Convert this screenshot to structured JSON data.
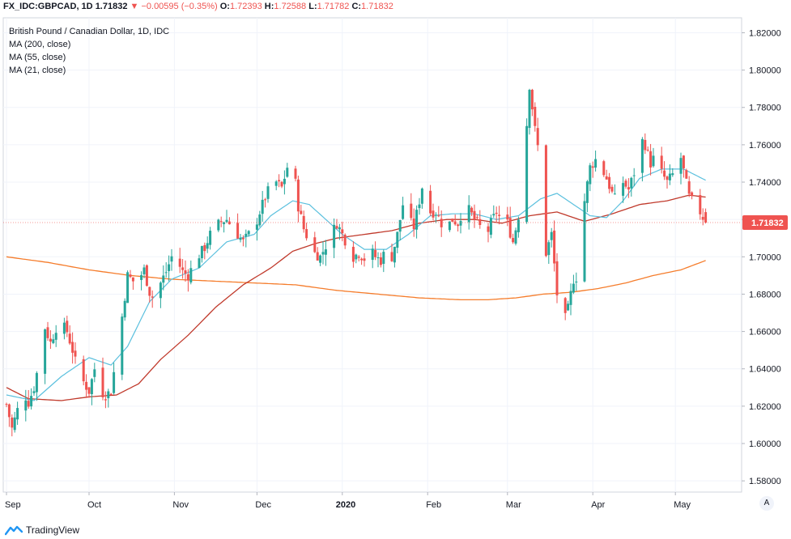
{
  "header": {
    "symbol": "FX_IDC:GBPCAD, 1D",
    "last": "1.71832",
    "change": "−0.00595 (−0.35%)",
    "o_label": "O:",
    "o": "1.72393",
    "h_label": "H:",
    "h": "1.72588",
    "l_label": "L:",
    "l": "1.71782",
    "c_label": "C:",
    "c": "1.71832"
  },
  "legend": {
    "title": "British Pound / Canadian Dollar, 1D, IDC",
    "ma200": "MA (200, close)",
    "ma55": "MA (55, close)",
    "ma21": "MA (21, close)"
  },
  "brand": "TradingView",
  "axis_auto_label": "A",
  "colors": {
    "up": "#26a69a",
    "down": "#ef5350",
    "ma200": "#f57c2b",
    "ma55": "#c0392b",
    "ma21": "#5bc0de",
    "price_tag": "#ef5350"
  },
  "chart_data": {
    "type": "candlestick",
    "title": "British Pound / Canadian Dollar, 1D, IDC",
    "ylim": [
      1.574,
      1.828
    ],
    "y_ticks": [
      "1.82000",
      "1.80000",
      "1.78000",
      "1.76000",
      "1.74000",
      "1.72000",
      "1.70000",
      "1.68000",
      "1.66000",
      "1.64000",
      "1.62000",
      "1.60000",
      "1.58000"
    ],
    "x_labels": [
      "Sep",
      "Oct",
      "Nov",
      "Dec",
      "2020",
      "Feb",
      "Mar",
      "Apr",
      "May"
    ],
    "x_label_days": [
      0,
      30,
      61,
      91,
      122,
      153,
      182,
      213,
      243
    ],
    "last_price_label": "1.71832",
    "last_price": 1.71832,
    "anchors": [
      {
        "d": 0,
        "c": 1.621
      },
      {
        "d": 2,
        "c": 1.608
      },
      {
        "d": 4,
        "c": 1.618
      },
      {
        "d": 6,
        "c": 1.628
      },
      {
        "d": 8,
        "c": 1.622
      },
      {
        "d": 10,
        "c": 1.63
      },
      {
        "d": 12,
        "c": 1.645
      },
      {
        "d": 14,
        "c": 1.662
      },
      {
        "d": 16,
        "c": 1.654
      },
      {
        "d": 18,
        "c": 1.662
      },
      {
        "d": 20,
        "c": 1.664
      },
      {
        "d": 22,
        "c": 1.66
      },
      {
        "d": 24,
        "c": 1.65
      },
      {
        "d": 26,
        "c": 1.638
      },
      {
        "d": 28,
        "c": 1.633
      },
      {
        "d": 30,
        "c": 1.628
      },
      {
        "d": 32,
        "c": 1.64
      },
      {
        "d": 34,
        "c": 1.628
      },
      {
        "d": 36,
        "c": 1.626
      },
      {
        "d": 38,
        "c": 1.628
      },
      {
        "d": 40,
        "c": 1.648
      },
      {
        "d": 42,
        "c": 1.668
      },
      {
        "d": 44,
        "c": 1.69
      },
      {
        "d": 46,
        "c": 1.687
      },
      {
        "d": 48,
        "c": 1.688
      },
      {
        "d": 50,
        "c": 1.693
      },
      {
        "d": 52,
        "c": 1.681
      },
      {
        "d": 54,
        "c": 1.676
      },
      {
        "d": 56,
        "c": 1.686
      },
      {
        "d": 58,
        "c": 1.692
      },
      {
        "d": 60,
        "c": 1.7
      },
      {
        "d": 62,
        "c": 1.698
      },
      {
        "d": 64,
        "c": 1.692
      },
      {
        "d": 66,
        "c": 1.69
      },
      {
        "d": 68,
        "c": 1.696
      },
      {
        "d": 70,
        "c": 1.701
      },
      {
        "d": 72,
        "c": 1.705
      },
      {
        "d": 74,
        "c": 1.712
      },
      {
        "d": 76,
        "c": 1.716
      },
      {
        "d": 78,
        "c": 1.719
      },
      {
        "d": 80,
        "c": 1.72
      },
      {
        "d": 82,
        "c": 1.716
      },
      {
        "d": 84,
        "c": 1.712
      },
      {
        "d": 86,
        "c": 1.708
      },
      {
        "d": 88,
        "c": 1.712
      },
      {
        "d": 90,
        "c": 1.715
      },
      {
        "d": 92,
        "c": 1.724
      },
      {
        "d": 94,
        "c": 1.732
      },
      {
        "d": 96,
        "c": 1.738
      },
      {
        "d": 98,
        "c": 1.74
      },
      {
        "d": 100,
        "c": 1.737
      },
      {
        "d": 102,
        "c": 1.748
      },
      {
        "d": 104,
        "c": 1.752
      },
      {
        "d": 106,
        "c": 1.727
      },
      {
        "d": 108,
        "c": 1.715
      },
      {
        "d": 110,
        "c": 1.708
      },
      {
        "d": 112,
        "c": 1.702
      },
      {
        "d": 114,
        "c": 1.7
      },
      {
        "d": 116,
        "c": 1.706
      },
      {
        "d": 118,
        "c": 1.712
      },
      {
        "d": 120,
        "c": 1.718
      },
      {
        "d": 122,
        "c": 1.712
      },
      {
        "d": 124,
        "c": 1.706
      },
      {
        "d": 126,
        "c": 1.7
      },
      {
        "d": 128,
        "c": 1.702
      },
      {
        "d": 130,
        "c": 1.699
      },
      {
        "d": 132,
        "c": 1.704
      },
      {
        "d": 134,
        "c": 1.7
      },
      {
        "d": 136,
        "c": 1.698
      },
      {
        "d": 138,
        "c": 1.704
      },
      {
        "d": 140,
        "c": 1.7
      },
      {
        "d": 142,
        "c": 1.712
      },
      {
        "d": 144,
        "c": 1.728
      },
      {
        "d": 146,
        "c": 1.72
      },
      {
        "d": 148,
        "c": 1.716
      },
      {
        "d": 150,
        "c": 1.73
      },
      {
        "d": 152,
        "c": 1.745
      },
      {
        "d": 154,
        "c": 1.724
      },
      {
        "d": 156,
        "c": 1.724
      },
      {
        "d": 158,
        "c": 1.718
      },
      {
        "d": 160,
        "c": 1.716
      },
      {
        "d": 162,
        "c": 1.72
      },
      {
        "d": 164,
        "c": 1.718
      },
      {
        "d": 166,
        "c": 1.726
      },
      {
        "d": 168,
        "c": 1.725
      },
      {
        "d": 170,
        "c": 1.72
      },
      {
        "d": 172,
        "c": 1.716
      },
      {
        "d": 174,
        "c": 1.71
      },
      {
        "d": 176,
        "c": 1.718
      },
      {
        "d": 178,
        "c": 1.724
      },
      {
        "d": 180,
        "c": 1.719
      },
      {
        "d": 182,
        "c": 1.718
      },
      {
        "d": 184,
        "c": 1.708
      },
      {
        "d": 186,
        "c": 1.722
      },
      {
        "d": 188,
        "c": 1.75
      },
      {
        "d": 190,
        "c": 1.792
      },
      {
        "d": 192,
        "c": 1.768
      },
      {
        "d": 194,
        "c": 1.75
      },
      {
        "d": 196,
        "c": 1.702
      },
      {
        "d": 198,
        "c": 1.712
      },
      {
        "d": 200,
        "c": 1.68
      },
      {
        "d": 202,
        "c": 1.662
      },
      {
        "d": 204,
        "c": 1.672
      },
      {
        "d": 206,
        "c": 1.688
      },
      {
        "d": 208,
        "c": 1.69
      },
      {
        "d": 210,
        "c": 1.73
      },
      {
        "d": 212,
        "c": 1.748
      },
      {
        "d": 214,
        "c": 1.752
      },
      {
        "d": 216,
        "c": 1.748
      },
      {
        "d": 218,
        "c": 1.742
      },
      {
        "d": 220,
        "c": 1.734
      },
      {
        "d": 222,
        "c": 1.728
      },
      {
        "d": 224,
        "c": 1.74
      },
      {
        "d": 226,
        "c": 1.736
      },
      {
        "d": 228,
        "c": 1.745
      },
      {
        "d": 230,
        "c": 1.764
      },
      {
        "d": 232,
        "c": 1.76
      },
      {
        "d": 234,
        "c": 1.75
      },
      {
        "d": 236,
        "c": 1.755
      },
      {
        "d": 238,
        "c": 1.745
      },
      {
        "d": 240,
        "c": 1.74
      },
      {
        "d": 242,
        "c": 1.744
      },
      {
        "d": 244,
        "c": 1.76
      },
      {
        "d": 246,
        "c": 1.746
      },
      {
        "d": 248,
        "c": 1.732
      },
      {
        "d": 250,
        "c": 1.728
      },
      {
        "d": 252,
        "c": 1.724
      },
      {
        "d": 254,
        "c": 1.7183
      }
    ],
    "ma21_anchors": [
      {
        "d": 0,
        "c": 1.626
      },
      {
        "d": 10,
        "c": 1.623
      },
      {
        "d": 20,
        "c": 1.636
      },
      {
        "d": 30,
        "c": 1.646
      },
      {
        "d": 38,
        "c": 1.642
      },
      {
        "d": 44,
        "c": 1.652
      },
      {
        "d": 52,
        "c": 1.676
      },
      {
        "d": 60,
        "c": 1.688
      },
      {
        "d": 70,
        "c": 1.694
      },
      {
        "d": 80,
        "c": 1.708
      },
      {
        "d": 90,
        "c": 1.712
      },
      {
        "d": 96,
        "c": 1.722
      },
      {
        "d": 104,
        "c": 1.73
      },
      {
        "d": 110,
        "c": 1.728
      },
      {
        "d": 116,
        "c": 1.72
      },
      {
        "d": 122,
        "c": 1.712
      },
      {
        "d": 130,
        "c": 1.704
      },
      {
        "d": 138,
        "c": 1.704
      },
      {
        "d": 146,
        "c": 1.712
      },
      {
        "d": 154,
        "c": 1.722
      },
      {
        "d": 162,
        "c": 1.723
      },
      {
        "d": 170,
        "c": 1.723
      },
      {
        "d": 178,
        "c": 1.72
      },
      {
        "d": 186,
        "c": 1.722
      },
      {
        "d": 194,
        "c": 1.731
      },
      {
        "d": 200,
        "c": 1.734
      },
      {
        "d": 206,
        "c": 1.728
      },
      {
        "d": 212,
        "c": 1.722
      },
      {
        "d": 218,
        "c": 1.721
      },
      {
        "d": 224,
        "c": 1.73
      },
      {
        "d": 230,
        "c": 1.742
      },
      {
        "d": 238,
        "c": 1.747
      },
      {
        "d": 246,
        "c": 1.747
      },
      {
        "d": 254,
        "c": 1.741
      }
    ],
    "ma55_anchors": [
      {
        "d": 0,
        "c": 1.63
      },
      {
        "d": 8,
        "c": 1.624
      },
      {
        "d": 20,
        "c": 1.623
      },
      {
        "d": 30,
        "c": 1.625
      },
      {
        "d": 40,
        "c": 1.626
      },
      {
        "d": 48,
        "c": 1.632
      },
      {
        "d": 56,
        "c": 1.645
      },
      {
        "d": 66,
        "c": 1.658
      },
      {
        "d": 76,
        "c": 1.673
      },
      {
        "d": 86,
        "c": 1.685
      },
      {
        "d": 96,
        "c": 1.694
      },
      {
        "d": 104,
        "c": 1.703
      },
      {
        "d": 112,
        "c": 1.707
      },
      {
        "d": 120,
        "c": 1.71
      },
      {
        "d": 130,
        "c": 1.712
      },
      {
        "d": 140,
        "c": 1.714
      },
      {
        "d": 150,
        "c": 1.718
      },
      {
        "d": 160,
        "c": 1.72
      },
      {
        "d": 170,
        "c": 1.72
      },
      {
        "d": 180,
        "c": 1.718
      },
      {
        "d": 190,
        "c": 1.722
      },
      {
        "d": 200,
        "c": 1.724
      },
      {
        "d": 210,
        "c": 1.719
      },
      {
        "d": 220,
        "c": 1.723
      },
      {
        "d": 230,
        "c": 1.728
      },
      {
        "d": 240,
        "c": 1.73
      },
      {
        "d": 248,
        "c": 1.733
      },
      {
        "d": 254,
        "c": 1.732
      }
    ],
    "ma200_anchors": [
      {
        "d": 0,
        "c": 1.7
      },
      {
        "d": 15,
        "c": 1.697
      },
      {
        "d": 30,
        "c": 1.693
      },
      {
        "d": 45,
        "c": 1.69
      },
      {
        "d": 60,
        "c": 1.688
      },
      {
        "d": 75,
        "c": 1.687
      },
      {
        "d": 90,
        "c": 1.686
      },
      {
        "d": 105,
        "c": 1.685
      },
      {
        "d": 120,
        "c": 1.682
      },
      {
        "d": 135,
        "c": 1.68
      },
      {
        "d": 150,
        "c": 1.678
      },
      {
        "d": 165,
        "c": 1.677
      },
      {
        "d": 175,
        "c": 1.677
      },
      {
        "d": 185,
        "c": 1.678
      },
      {
        "d": 195,
        "c": 1.68
      },
      {
        "d": 205,
        "c": 1.681
      },
      {
        "d": 215,
        "c": 1.683
      },
      {
        "d": 225,
        "c": 1.686
      },
      {
        "d": 235,
        "c": 1.69
      },
      {
        "d": 245,
        "c": 1.693
      },
      {
        "d": 254,
        "c": 1.698
      }
    ]
  }
}
